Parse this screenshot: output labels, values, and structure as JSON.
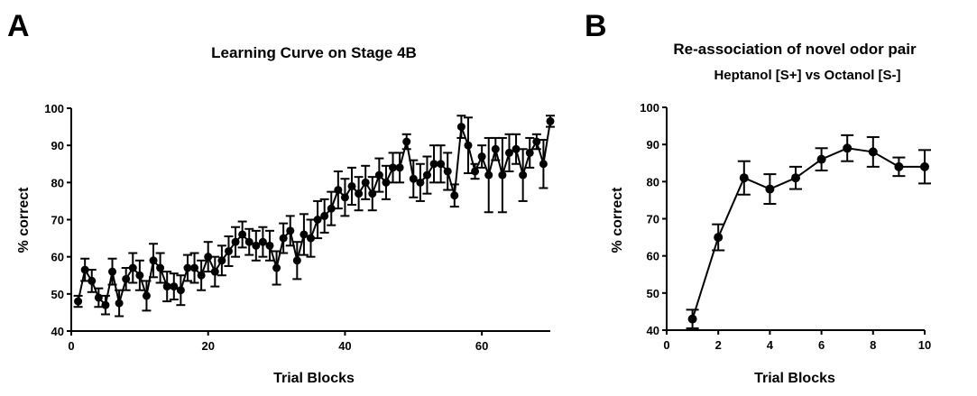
{
  "panel_letters": [
    "A",
    "B"
  ],
  "chart_data": [
    {
      "type": "line",
      "title": "Learning Curve on Stage 4B",
      "xlabel": "Trial Blocks",
      "ylabel": "% correct",
      "xlim": [
        0,
        70
      ],
      "ylim": [
        40,
        100
      ],
      "xticks": [
        0,
        20,
        40,
        60
      ],
      "yticks": [
        40,
        50,
        60,
        70,
        80,
        90,
        100
      ],
      "grid": false,
      "series": [
        {
          "x": [
            1,
            2,
            3,
            4,
            5,
            6,
            7,
            8,
            9,
            10,
            11,
            12,
            13,
            14,
            15,
            16,
            17,
            18,
            19,
            20,
            21,
            22,
            23,
            24,
            25,
            26,
            27,
            28,
            29,
            30,
            31,
            32,
            33,
            34,
            35,
            36,
            37,
            38,
            39,
            40,
            41,
            42,
            43,
            44,
            45,
            46,
            47,
            48,
            49,
            50,
            51,
            52,
            53,
            54,
            55,
            56,
            57,
            58,
            59,
            60,
            61,
            62,
            63,
            64,
            65,
            66,
            67,
            68,
            69,
            70
          ],
          "y": [
            48,
            56.5,
            53.5,
            49,
            47,
            56,
            47.5,
            54,
            57,
            55,
            49.5,
            59,
            57,
            52,
            52,
            51,
            57,
            57,
            55,
            60,
            56,
            59,
            61.5,
            64,
            66,
            64,
            63,
            64,
            63,
            57,
            65,
            67,
            59,
            66,
            65,
            70,
            71,
            73,
            78,
            76,
            79,
            77,
            80,
            77,
            82,
            80,
            84,
            84,
            91,
            81,
            80,
            82,
            85,
            85,
            83,
            76.5,
            95,
            90,
            83,
            87,
            82,
            89,
            82,
            88,
            89,
            82,
            88,
            91,
            85,
            96.5
          ],
          "err": [
            1.5,
            3,
            3,
            2.5,
            2.5,
            3.5,
            3.5,
            3,
            4,
            4,
            4,
            4.5,
            4,
            4,
            3.5,
            4,
            3.5,
            4,
            4,
            4,
            4,
            4,
            4,
            4,
            3.5,
            3.5,
            4,
            4,
            4,
            4.5,
            4,
            4,
            5,
            5.5,
            5,
            5,
            4.5,
            4.5,
            5,
            5,
            5,
            4.5,
            4.5,
            4.5,
            4.5,
            4.5,
            4,
            4,
            2,
            5,
            5,
            5,
            5,
            5,
            5,
            3,
            3,
            7.5,
            2,
            3,
            10,
            3,
            10,
            5,
            4,
            7,
            4,
            2,
            6.5,
            1.5
          ]
        }
      ]
    },
    {
      "type": "line",
      "title": "Re-association of novel odor pair",
      "subtitle": "Heptanol [S+] vs Octanol [S-]",
      "xlabel": "Trial Blocks",
      "ylabel": "% correct",
      "xlim": [
        0,
        10
      ],
      "ylim": [
        40,
        100
      ],
      "xticks": [
        0,
        2,
        4,
        6,
        8,
        10
      ],
      "yticks": [
        40,
        50,
        60,
        70,
        80,
        90,
        100
      ],
      "grid": false,
      "series": [
        {
          "x": [
            1,
            2,
            3,
            4,
            5,
            6,
            7,
            8,
            9,
            10
          ],
          "y": [
            43,
            65,
            81,
            78,
            81,
            86,
            89,
            88,
            84,
            84
          ],
          "err": [
            2.5,
            3.5,
            4.5,
            4,
            3,
            3,
            3.5,
            4,
            2.5,
            4.5
          ]
        }
      ]
    }
  ]
}
